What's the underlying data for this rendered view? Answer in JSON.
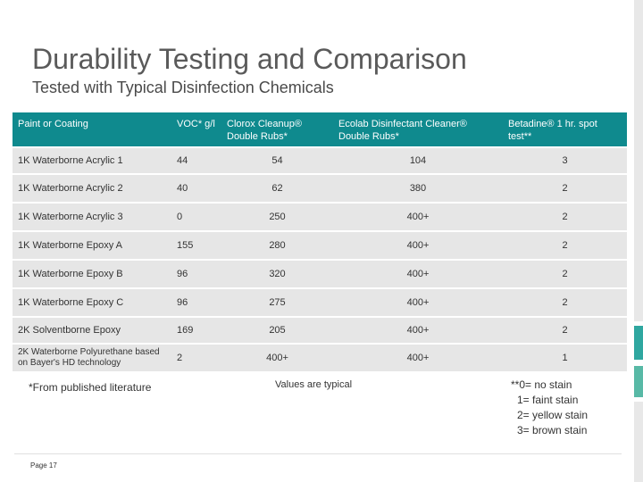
{
  "title": "Durability Testing and Comparison",
  "subtitle": "Tested with Typical Disinfection Chemicals",
  "table": {
    "headers": [
      "Paint or Coating",
      "VOC* g/l",
      "Clorox Cleanup® Double Rubs*",
      "Ecolab Disinfectant Cleaner® Double Rubs*",
      "Betadine® 1 hr. spot test**"
    ],
    "rows": [
      [
        "1K Waterborne Acrylic 1",
        "44",
        "54",
        "104",
        "3"
      ],
      [
        "1K Waterborne Acrylic 2",
        "40",
        "62",
        "380",
        "2"
      ],
      [
        "1K Waterborne Acrylic 3",
        "0",
        "250",
        "400+",
        "2"
      ],
      [
        "1K Waterborne Epoxy A",
        "155",
        "280",
        "400+",
        "2"
      ],
      [
        "1K Waterborne Epoxy B",
        "96",
        "320",
        "400+",
        "2"
      ],
      [
        "1K Waterborne Epoxy C",
        "96",
        "275",
        "400+",
        "2"
      ],
      [
        "2K Solventborne Epoxy",
        "169",
        "205",
        "400+",
        "2"
      ],
      [
        "2K Waterborne Polyurethane based on Bayer's HD technology",
        "2",
        "400+",
        "400+",
        "1"
      ]
    ]
  },
  "footnotes": {
    "literature": "*From published literature",
    "values": "Values are typical",
    "stain_legend": [
      "**0= no stain",
      "1= faint stain",
      "2= yellow stain",
      "3= brown stain"
    ]
  },
  "page_label": "Page 17",
  "colors": {
    "header_bg": "#0f8a8e",
    "row_bg": "#e6e6e6",
    "accent": "#2fa7a0"
  }
}
